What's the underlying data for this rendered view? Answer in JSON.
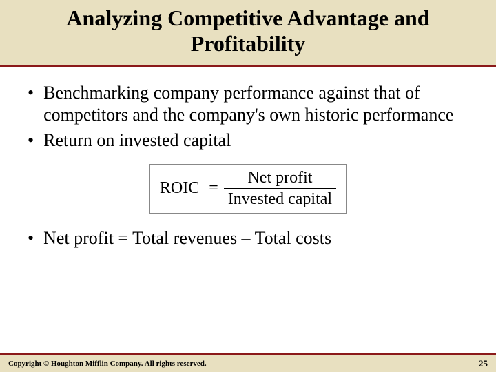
{
  "slide": {
    "title": "Analyzing Competitive Advantage and Profitability",
    "bullets": [
      "Benchmarking company performance against that of competitors and the company's own historic performance",
      "Return on invested capital",
      "Net profit = Total revenues – Total costs"
    ],
    "formula": {
      "lhs": "ROIC",
      "eq": "=",
      "numerator": "Net profit",
      "denominator": "Invested capital"
    },
    "footer": {
      "copyright": "Copyright © Houghton Mifflin Company. All rights reserved.",
      "page": "25"
    }
  },
  "style": {
    "band_bg": "#e8e0c0",
    "rule_color": "#8b1a1a",
    "title_fontsize": 32,
    "body_fontsize": 26,
    "formula_fontsize": 24,
    "footer_fontsize": 11,
    "page_fontsize": 13,
    "text_color": "#000000",
    "page_bg": "#ffffff"
  }
}
